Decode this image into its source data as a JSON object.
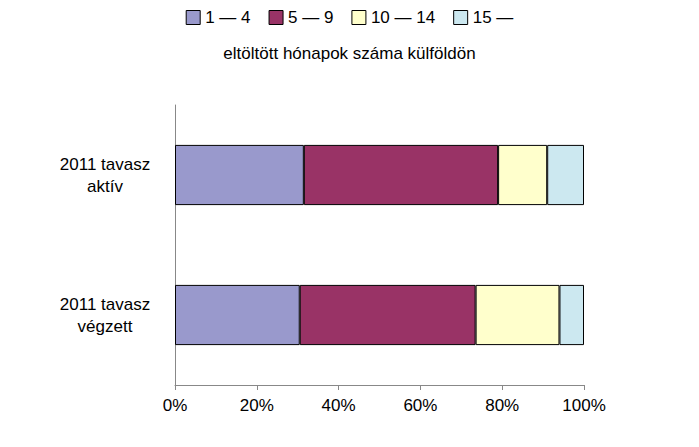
{
  "chart_data": {
    "type": "bar",
    "orientation": "horizontal",
    "stacked": true,
    "subtitle": "eltöltött hónapok száma külföldön",
    "categories": [
      "2011 tavasz\naktív",
      "2011 tavasz\nvégzett"
    ],
    "series": [
      {
        "name": "1 — 4",
        "color": "#9999cc",
        "values": [
          31.5,
          30.5
        ]
      },
      {
        "name": "5 — 9",
        "color": "#993366",
        "values": [
          47.5,
          43
        ]
      },
      {
        "name": "10 — 14",
        "color": "#ffffcc",
        "values": [
          12,
          20.5
        ]
      },
      {
        "name": "15 —",
        "color": "#cce8f0",
        "values": [
          9,
          6
        ]
      }
    ],
    "xlim": [
      0,
      100
    ],
    "xticks": [
      {
        "value": 0,
        "label": "0%"
      },
      {
        "value": 20,
        "label": "20%"
      },
      {
        "value": 40,
        "label": "40%"
      },
      {
        "value": 60,
        "label": "60%"
      },
      {
        "value": 80,
        "label": "80%"
      },
      {
        "value": 100,
        "label": "100%"
      }
    ],
    "grid": false,
    "legend": "top"
  }
}
